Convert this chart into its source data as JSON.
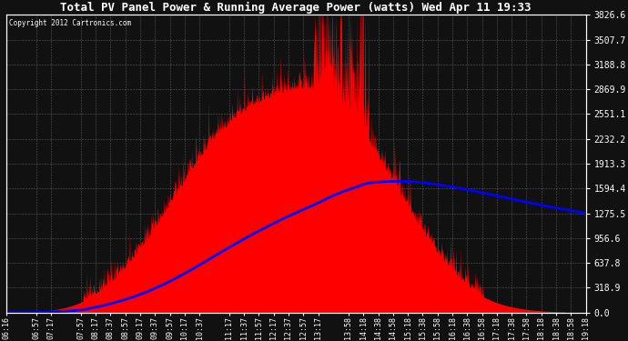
{
  "title": "Total PV Panel Power & Running Average Power (watts) Wed Apr 11 19:33",
  "copyright": "Copyright 2012 Cartronics.com",
  "bg_color": "#111111",
  "plot_bg_color": "#111111",
  "grid_color": "#888888",
  "bar_color": "#ff0000",
  "line_color": "#0000ff",
  "title_color": "#ffffff",
  "tick_color": "#ffffff",
  "y_ticks": [
    0.0,
    318.9,
    637.8,
    956.6,
    1275.5,
    1594.4,
    1913.3,
    2232.2,
    2551.1,
    2869.9,
    3188.8,
    3507.7,
    3826.6
  ],
  "x_labels": [
    "06:16",
    "06:57",
    "07:17",
    "07:57",
    "08:17",
    "08:37",
    "08:57",
    "09:17",
    "09:37",
    "09:57",
    "10:17",
    "10:37",
    "11:17",
    "11:37",
    "11:57",
    "12:17",
    "12:37",
    "12:57",
    "13:17",
    "13:58",
    "14:18",
    "14:38",
    "14:58",
    "15:18",
    "15:38",
    "15:58",
    "16:18",
    "16:38",
    "16:58",
    "17:18",
    "17:38",
    "17:58",
    "18:18",
    "18:38",
    "18:58",
    "19:18"
  ],
  "ymax": 3826.6,
  "ymin": 0.0
}
